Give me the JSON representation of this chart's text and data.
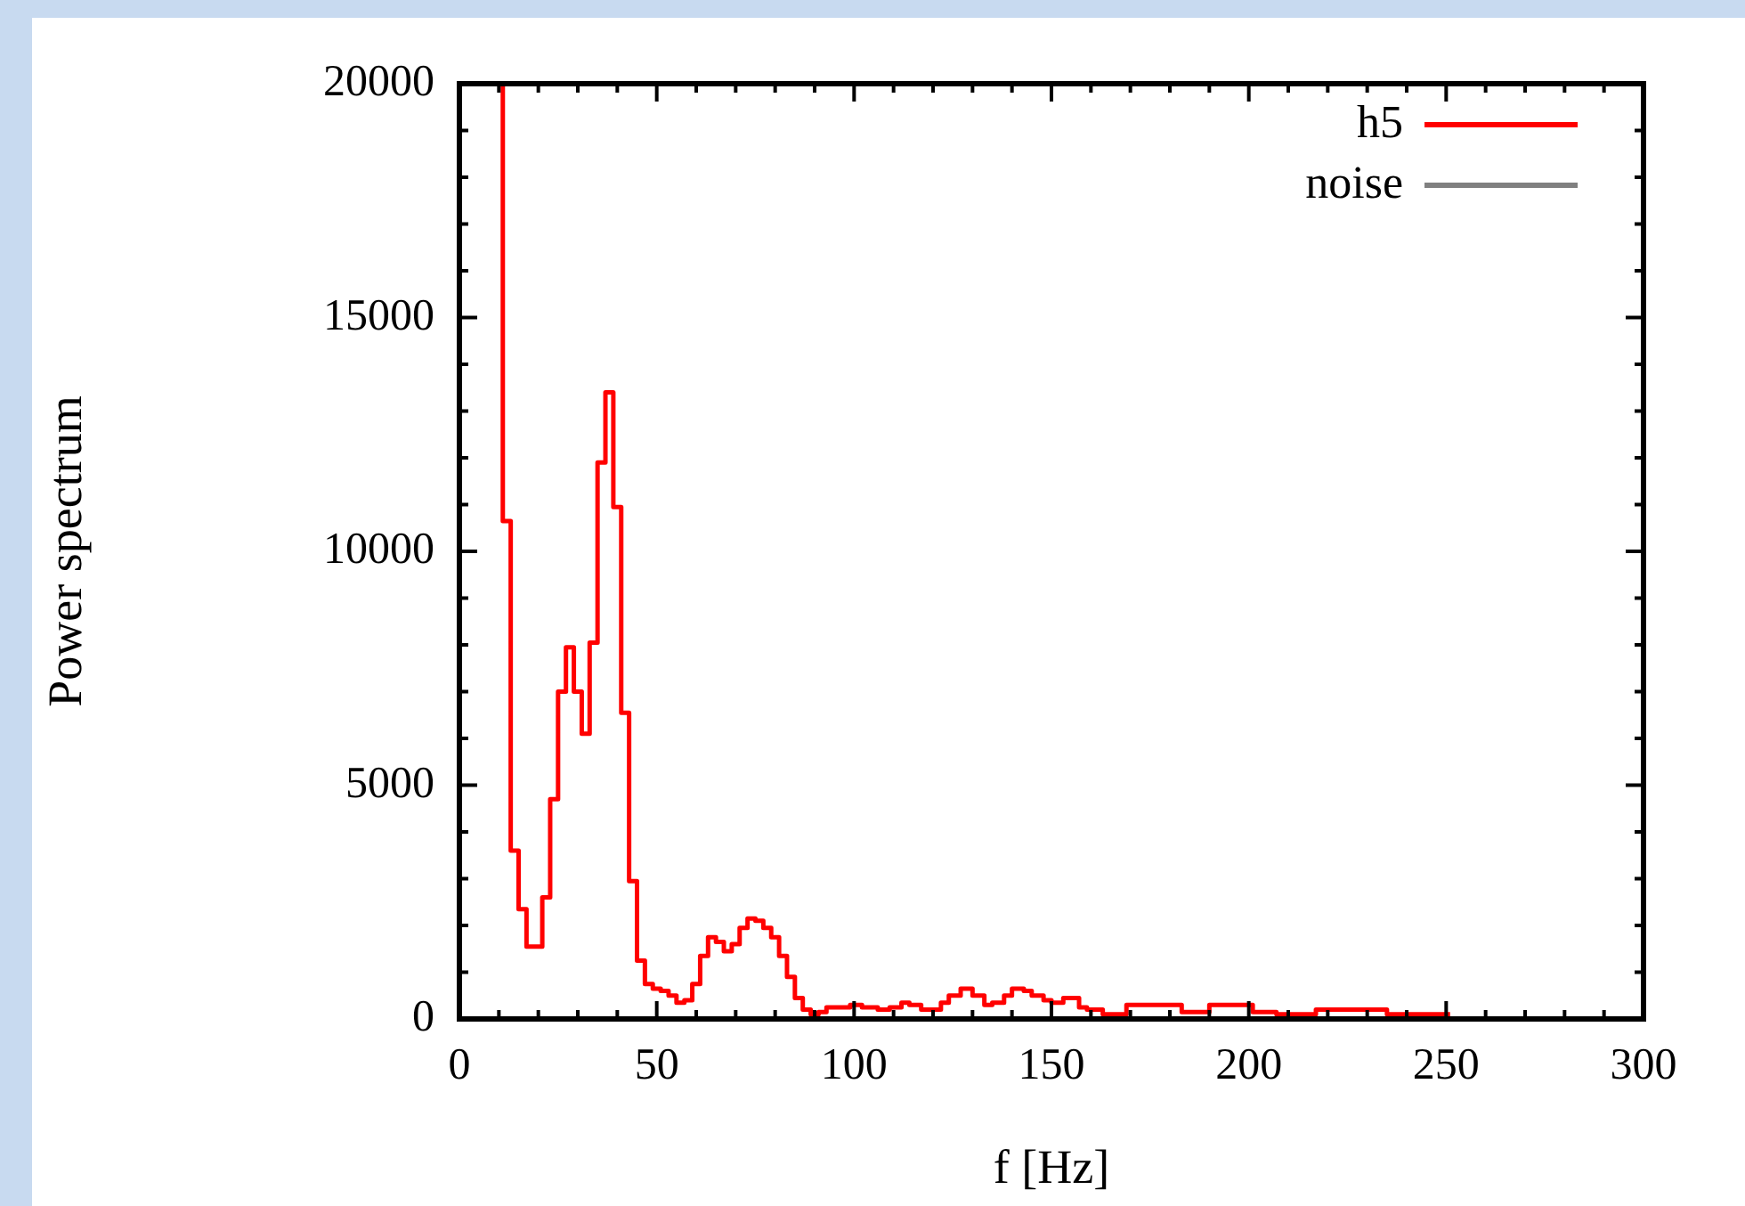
{
  "chart_data": {
    "type": "step",
    "xlabel": "f [Hz]",
    "ylabel": "Power spectrum",
    "xlim": [
      0,
      300
    ],
    "xticks": [
      0,
      50,
      100,
      150,
      200,
      250,
      300
    ],
    "ylim": [
      0,
      20000
    ],
    "yticks": [
      0,
      5000,
      10000,
      15000,
      20000
    ],
    "grid": false,
    "legend": "top right",
    "line_style": "solid",
    "marker": "none",
    "series": [
      {
        "name": "h5",
        "color": "#ff0000",
        "x": [
          11,
          13,
          15,
          17,
          19,
          21,
          23,
          25,
          27,
          29,
          31,
          33,
          35,
          37,
          39,
          41,
          43,
          45,
          47,
          49,
          51,
          53,
          55,
          57,
          59,
          61,
          63,
          65,
          67,
          69,
          71,
          73,
          75,
          77,
          79,
          81,
          83,
          85,
          87,
          89,
          91,
          93,
          99,
          102,
          106,
          109,
          112,
          114,
          117,
          119,
          122,
          124,
          127,
          130,
          133,
          135,
          138,
          140,
          143,
          145,
          148,
          150,
          153,
          157,
          159,
          163,
          169,
          183,
          190,
          201,
          207,
          217,
          235,
          243,
          251
        ],
        "values": [
          20000,
          10650,
          3600,
          2350,
          1550,
          1550,
          2600,
          4700,
          7000,
          7950,
          7000,
          6100,
          8050,
          11900,
          13400,
          10950,
          6550,
          2950,
          1250,
          750,
          650,
          600,
          500,
          350,
          400,
          750,
          1350,
          1750,
          1650,
          1450,
          1600,
          1950,
          2150,
          2100,
          1950,
          1750,
          1350,
          900,
          450,
          200,
          100,
          150,
          250,
          300,
          250,
          200,
          250,
          350,
          300,
          200,
          200,
          350,
          500,
          650,
          500,
          300,
          350,
          500,
          650,
          600,
          500,
          400,
          350,
          450,
          250,
          200,
          100,
          300,
          150,
          300,
          150,
          100,
          200,
          100,
          100
        ]
      },
      {
        "name": "noise",
        "color": "#808080"
      }
    ]
  }
}
